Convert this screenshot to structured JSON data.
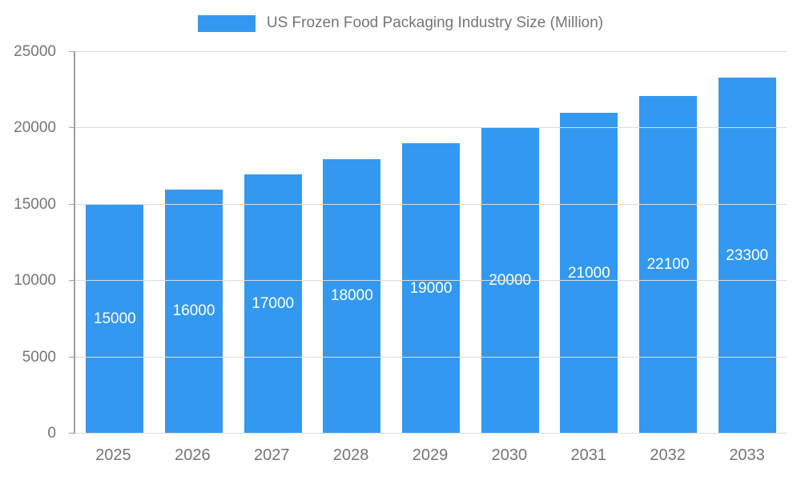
{
  "legend": {
    "label": "US Frozen Food Packaging Industry Size (Million)"
  },
  "chart_data": {
    "type": "bar",
    "title": "US Frozen Food Packaging Industry Size (Million)",
    "categories": [
      "2025",
      "2026",
      "2027",
      "2028",
      "2029",
      "2030",
      "2031",
      "2032",
      "2033"
    ],
    "values": [
      15000,
      16000,
      17000,
      18000,
      19000,
      20000,
      21000,
      22100,
      23300
    ],
    "xlabel": "",
    "ylabel": "",
    "ylim": [
      0,
      25000
    ],
    "ytick_interval": 5000,
    "ytick_labels": [
      "0",
      "5000",
      "10000",
      "15000",
      "20000",
      "25000"
    ],
    "grid": true,
    "legend_position": "top",
    "bar_color": "#3399f0",
    "data_label_color": "#ffffff",
    "axis_text_color": "#757575"
  }
}
